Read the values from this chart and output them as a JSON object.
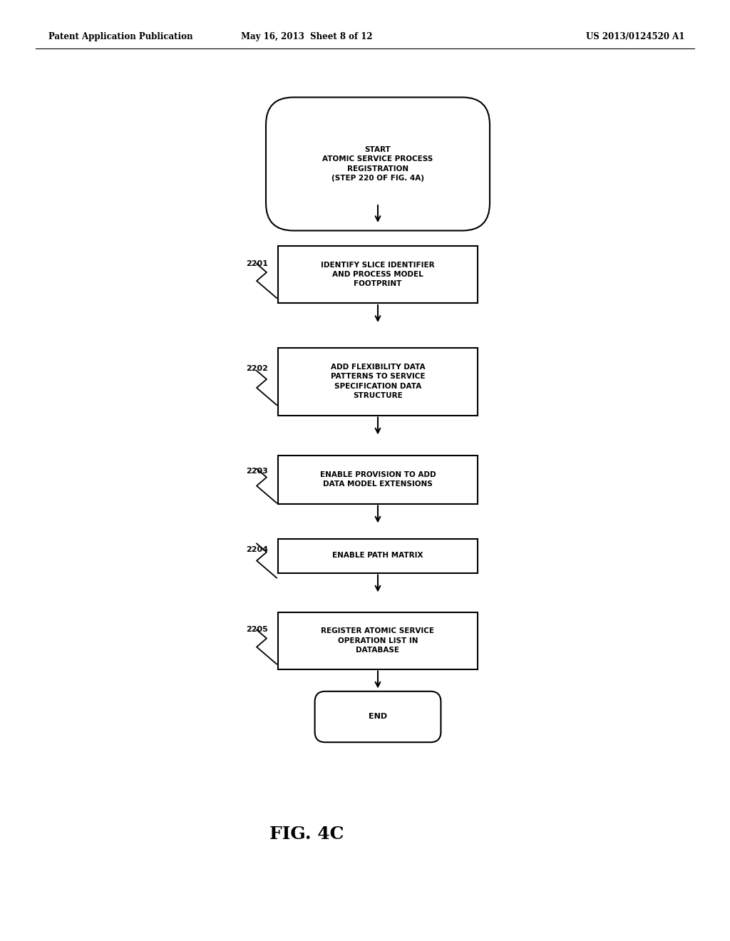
{
  "bg_color": "#ffffff",
  "header_left": "Patent Application Publication",
  "header_mid": "May 16, 2013  Sheet 8 of 12",
  "header_right": "US 2013/0124520 A1",
  "fig_label": "FIG. 4C",
  "start_text": "START\nATOMIC SERVICE PROCESS\nREGISTRATION\n(STEP 220 OF FIG. 4A)",
  "end_text": "END",
  "boxes": [
    {
      "id": "2201",
      "label": "IDENTIFY SLICE IDENTIFIER\nAND PROCESS MODEL\nFOOTPRINT"
    },
    {
      "id": "2202",
      "label": "ADD FLEXIBILITY DATA\nPATTERNS TO SERVICE\nSPECIFICATION DATA\nSTRUCTURE"
    },
    {
      "id": "2203",
      "label": "ENABLE PROVISION TO ADD\nDATA MODEL EXTENSIONS"
    },
    {
      "id": "2204",
      "label": "ENABLE PATH MATRIX"
    },
    {
      "id": "2205",
      "label": "REGISTER ATOMIC SERVICE\nOPERATION LIST IN\nDATABASE"
    }
  ],
  "line_color": "#000000",
  "text_color": "#000000",
  "font_size_header": 8.5,
  "font_size_box": 7.5,
  "font_size_fig": 18,
  "font_size_id": 8
}
